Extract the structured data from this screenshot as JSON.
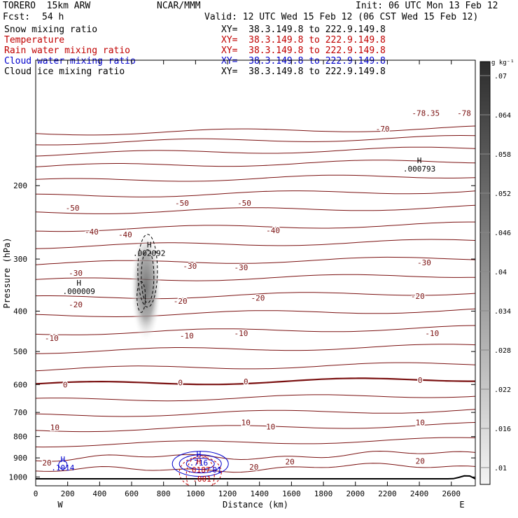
{
  "header": {
    "model": "TORERO  15km ARW",
    "org": "NCAR/MMM",
    "init": "Init: 06 UTC Mon 13 Feb 12",
    "fcst_label": "Fcst:",
    "fcst_value": "54 h",
    "valid": "Valid: 12 UTC Wed 15 Feb 12 (06 CST Wed 15 Feb 12)",
    "fields": [
      {
        "name": "Snow mixing ratio",
        "xy": "XY=  38.3.149.8 to 222.9.149.8",
        "color": "#000000"
      },
      {
        "name": "Temperature",
        "xy": "XY=  38.3.149.8 to 222.9.149.8",
        "color": "#c00000"
      },
      {
        "name": "Rain water mixing ratio",
        "xy": "XY=  38.3.149.8 to 222.9.149.8",
        "color": "#c00000"
      },
      {
        "name": "Cloud water mixing ratio",
        "xy": "XY=  38.3.149.8 to 222.9.149.8",
        "color": "#0000cc"
      },
      {
        "name": "Cloud ice mixing ratio",
        "xy": "XY=  38.3.149.8 to 222.9.149.8",
        "color": "#000000"
      }
    ]
  },
  "chart_data": {
    "type": "contour",
    "xlabel": "Distance (km)",
    "ylabel": "Pressure (hPa)",
    "xlim": [
      0,
      2750
    ],
    "ylim": [
      1050,
      100
    ],
    "y_log_scale": true,
    "x_ticks": [
      0,
      200,
      400,
      600,
      800,
      1000,
      1200,
      1400,
      1600,
      1800,
      2000,
      2200,
      2400,
      2600
    ],
    "y_ticks": [
      200,
      300,
      400,
      500,
      600,
      700,
      800,
      900,
      1000
    ],
    "x_end_labels": {
      "left": "W",
      "right": "E"
    },
    "colorbar": {
      "unit": "g kg⁻¹",
      "ticks": [
        ".01",
        ".016",
        ".022",
        ".028",
        ".034",
        ".04",
        ".046",
        ".052",
        ".058",
        ".064",
        ".07"
      ]
    },
    "temperature_contour_labels": [
      {
        "value": "-78.35",
        "x": 2440,
        "p": 134
      },
      {
        "value": "-78",
        "x": 2680,
        "p": 134
      },
      {
        "value": "-70",
        "x": 2170,
        "p": 146
      },
      {
        "value": "-50",
        "x": 230,
        "p": 226
      },
      {
        "value": "-50",
        "x": 915,
        "p": 220
      },
      {
        "value": "-50",
        "x": 1305,
        "p": 220
      },
      {
        "value": "-40",
        "x": 350,
        "p": 258
      },
      {
        "value": "-40",
        "x": 560,
        "p": 262
      },
      {
        "value": "-40",
        "x": 1485,
        "p": 256
      },
      {
        "value": "-30",
        "x": 250,
        "p": 324
      },
      {
        "value": "-30",
        "x": 965,
        "p": 312
      },
      {
        "value": "-30",
        "x": 1285,
        "p": 314
      },
      {
        "value": "-30",
        "x": 2430,
        "p": 306
      },
      {
        "value": "-20",
        "x": 250,
        "p": 386
      },
      {
        "value": "-20",
        "x": 905,
        "p": 378
      },
      {
        "value": "-20",
        "x": 1390,
        "p": 372
      },
      {
        "value": "-20",
        "x": 2390,
        "p": 368
      },
      {
        "value": "-10",
        "x": 100,
        "p": 464
      },
      {
        "value": "-10",
        "x": 945,
        "p": 458
      },
      {
        "value": "-10",
        "x": 1285,
        "p": 452
      },
      {
        "value": "-10",
        "x": 2480,
        "p": 452
      },
      {
        "value": "0",
        "x": 185,
        "p": 600
      },
      {
        "value": "0",
        "x": 905,
        "p": 594
      },
      {
        "value": "0",
        "x": 1315,
        "p": 590
      },
      {
        "value": "0",
        "x": 2405,
        "p": 586
      },
      {
        "value": "10",
        "x": 120,
        "p": 760
      },
      {
        "value": "10",
        "x": 1315,
        "p": 740
      },
      {
        "value": "10",
        "x": 1470,
        "p": 758
      },
      {
        "value": "10",
        "x": 2405,
        "p": 740
      },
      {
        "value": "20",
        "x": 70,
        "p": 925
      },
      {
        "value": "20",
        "x": 1590,
        "p": 918
      },
      {
        "value": "20",
        "x": 1365,
        "p": 945
      },
      {
        "value": "20",
        "x": 2405,
        "p": 916
      }
    ],
    "extrema": [
      {
        "mark": "H",
        "value": ".000793",
        "x": 2400,
        "p": 182,
        "color": "#000000"
      },
      {
        "mark": "H",
        "value": ".002092",
        "x": 710,
        "p": 290,
        "color": "#000000"
      },
      {
        "mark": "H",
        "value": ".000009",
        "x": 270,
        "p": 358,
        "color": "#000000"
      },
      {
        "mark": "H",
        "value": ".1014",
        "x": 170,
        "p": 950,
        "color": "#0000cc"
      },
      {
        "mark": "H",
        "value": ".716",
        "x": 1020,
        "p": 925,
        "color": "#0000cc"
      },
      {
        "mark": "H",
        "value": ".0187",
        "x": 1020,
        "p": 960,
        "color": "#c00000"
      },
      {
        "mark": "",
        "value": ".01",
        "x": 1120,
        "p": 960,
        "color": "#0000cc"
      },
      {
        "mark": "",
        "value": ".001",
        "x": 1040,
        "p": 1010,
        "color": "#c00000"
      }
    ]
  }
}
